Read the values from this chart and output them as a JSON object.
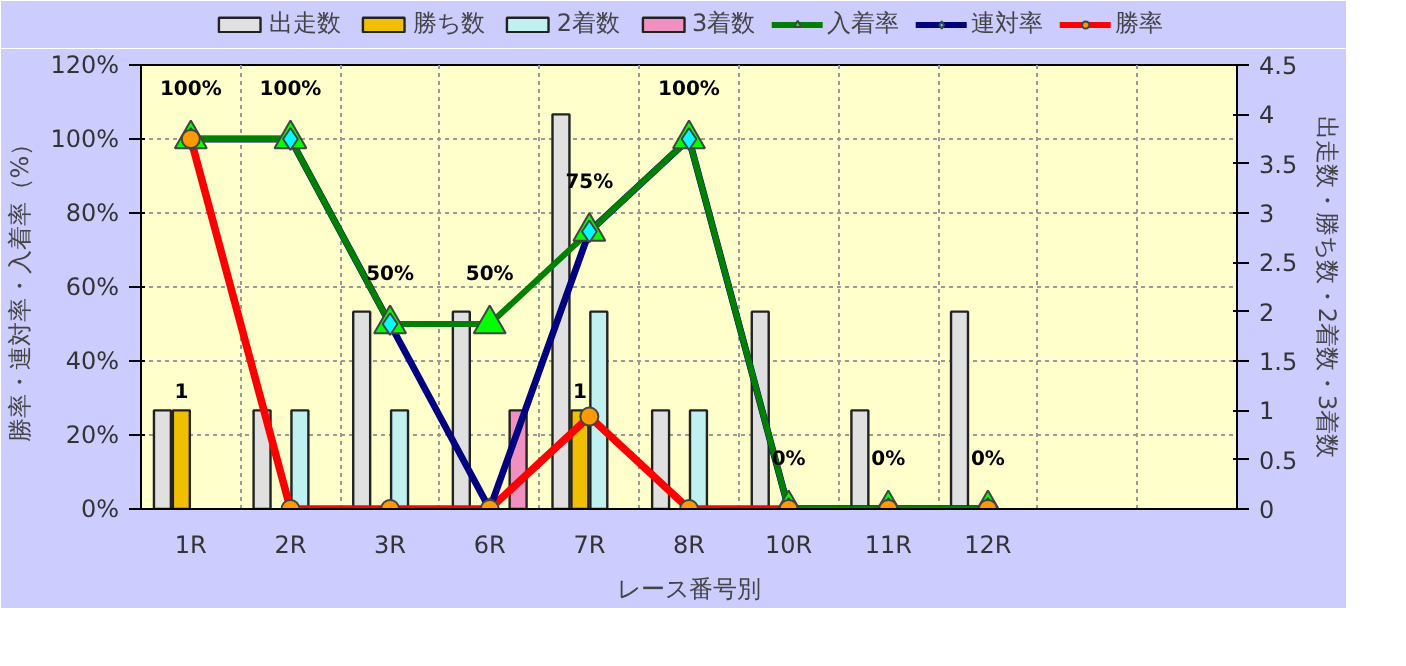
{
  "chart_data": {
    "type": "bar",
    "xlabel": "レース番号別",
    "ylabel": "勝率・連対率・入着率（%）",
    "y2label": "出走数・勝ち数・2着数・3着数",
    "categories": [
      "1R",
      "2R",
      "3R",
      "6R",
      "7R",
      "8R",
      "10R",
      "11R",
      "12R",
      null,
      null
    ],
    "ylim": [
      0,
      120
    ],
    "yticks": [
      {
        "value": 0,
        "label": "0%"
      },
      {
        "value": 20,
        "label": "20%"
      },
      {
        "value": 40,
        "label": "40%"
      },
      {
        "value": 60,
        "label": "60%"
      },
      {
        "value": 80,
        "label": "80%"
      },
      {
        "value": 100,
        "label": "100%"
      },
      {
        "value": 120,
        "label": "120%"
      }
    ],
    "y2lim": [
      0,
      4.5
    ],
    "y2ticks": [
      0,
      0.5,
      1,
      1.5,
      2,
      2.5,
      3,
      3.5,
      4,
      4.5
    ],
    "grid": true,
    "legend": "top",
    "series": [
      {
        "name": "出走数",
        "axis": "y2",
        "color": "#e0e0e0",
        "values": [
          1,
          1,
          2,
          2,
          4,
          1,
          2,
          1,
          2,
          null,
          null
        ]
      },
      {
        "name": "勝ち数",
        "axis": "y2",
        "color": "#f0c000",
        "values": [
          1,
          0,
          0,
          0,
          1,
          0,
          0,
          0,
          0,
          null,
          null
        ],
        "value_labels": [
          "1",
          null,
          null,
          null,
          "1",
          null,
          null,
          null,
          null,
          null,
          null
        ]
      },
      {
        "name": "2着数",
        "axis": "y2",
        "color": "#c0f0f0",
        "values": [
          0,
          1,
          1,
          0,
          2,
          1,
          0,
          0,
          0,
          null,
          null
        ]
      },
      {
        "name": "3着数",
        "axis": "y2",
        "color": "#f090c0",
        "values": [
          0,
          0,
          0,
          1,
          0,
          0,
          0,
          0,
          0,
          null,
          null
        ]
      },
      {
        "name": "入着率",
        "type": "line",
        "marker": "triangle",
        "color": "#008000",
        "colors": [
          "#00ff00",
          "#00ff00",
          "#00ff00",
          "#00ff00",
          "#00ff00",
          "#00ff00",
          "#00ff00",
          "#00ff00",
          "#00ff00",
          "#00ff00",
          "#00ff00"
        ],
        "values": [
          100,
          100,
          50,
          50,
          75,
          100,
          0,
          0,
          0,
          null,
          null
        ],
        "value_labels": [
          "100%",
          "100%",
          "50%",
          "50%",
          "75%",
          "100%",
          "0%",
          "0%",
          "0%",
          null,
          null
        ]
      },
      {
        "name": "連対率",
        "type": "line",
        "marker": "diamond",
        "color": "#000080",
        "colors": [
          "#00ffff",
          "#00ffff",
          "#00ffff",
          "#00ffff",
          "#00ffff",
          "#00ffff",
          "#00ffff",
          "#00ffff",
          "#00ffff",
          "#00ffff",
          "#00ffff"
        ],
        "values": [
          100,
          100,
          50,
          0,
          75,
          100,
          0,
          0,
          0,
          null,
          null
        ]
      },
      {
        "name": "勝率",
        "type": "line",
        "marker": "circle",
        "color": "#ff0000",
        "colors": [
          "#ff9900",
          "#ff9900",
          "#ff9900",
          "#ff9900",
          "#ff9900",
          "#ff9900",
          "#ff9900",
          "#ff9900",
          "#ff9900",
          "#ff9900",
          "#ff9900"
        ],
        "values": [
          100,
          0,
          0,
          0,
          25,
          0,
          0,
          0,
          0,
          null,
          null
        ]
      }
    ]
  }
}
